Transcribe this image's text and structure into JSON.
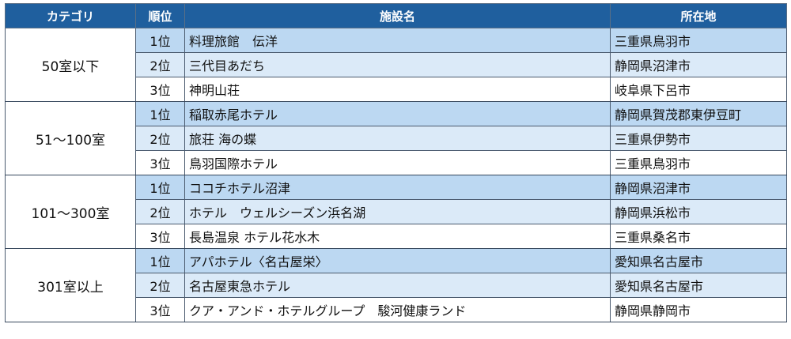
{
  "headers": {
    "category": "カテゴリ",
    "rank": "順位",
    "facility": "施設名",
    "location": "所在地"
  },
  "groups": [
    {
      "category": "50室以下",
      "rows": [
        {
          "rank": "1位",
          "facility": "料理旅館　伝洋",
          "location": "三重県鳥羽市"
        },
        {
          "rank": "2位",
          "facility": "三代目あだち",
          "location": "静岡県沼津市"
        },
        {
          "rank": "3位",
          "facility": "神明山荘",
          "location": "岐阜県下呂市"
        }
      ]
    },
    {
      "category": "51～100室",
      "rows": [
        {
          "rank": "1位",
          "facility": "稲取赤尾ホテル",
          "location": "静岡県賀茂郡東伊豆町"
        },
        {
          "rank": "2位",
          "facility": "旅荘 海の蝶",
          "location": "三重県伊勢市"
        },
        {
          "rank": "3位",
          "facility": "鳥羽国際ホテル",
          "location": "三重県鳥羽市"
        }
      ]
    },
    {
      "category": "101～300室",
      "rows": [
        {
          "rank": "1位",
          "facility": "ココチホテル沼津",
          "location": "静岡県沼津市"
        },
        {
          "rank": "2位",
          "facility": "ホテル　ウェルシーズン浜名湖",
          "location": "静岡県浜松市"
        },
        {
          "rank": "3位",
          "facility": "長島温泉 ホテル花水木",
          "location": "三重県桑名市"
        }
      ]
    },
    {
      "category": "301室以上",
      "rows": [
        {
          "rank": "1位",
          "facility": "アパホテル〈名古屋栄〉",
          "location": "愛知県名古屋市"
        },
        {
          "rank": "2位",
          "facility": "名古屋東急ホテル",
          "location": "愛知県名古屋市"
        },
        {
          "rank": "3位",
          "facility": "クア・アンド・ホテルグループ　駿河健康ランド",
          "location": "静岡県静岡市"
        }
      ]
    }
  ]
}
